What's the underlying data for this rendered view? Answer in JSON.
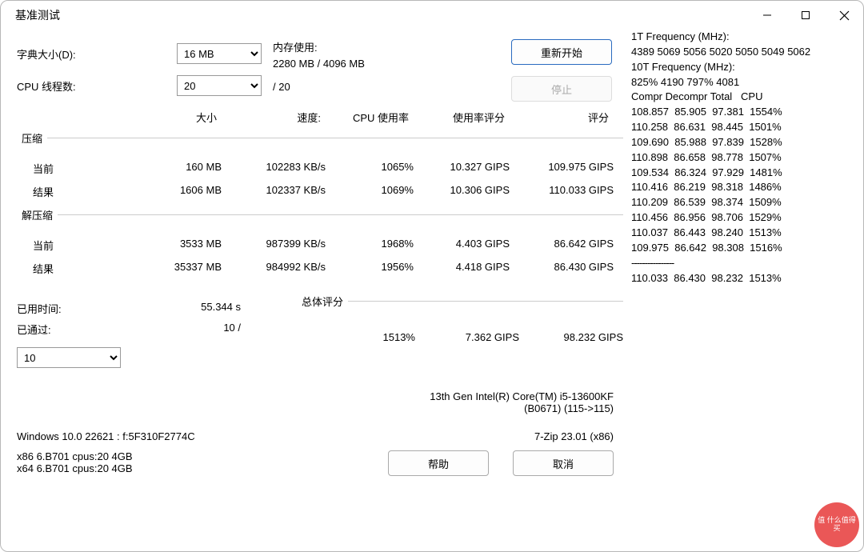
{
  "window": {
    "title": "基准测试"
  },
  "form": {
    "dict_label": "字典大小(D):",
    "dict_value": "16 MB",
    "threads_label": "CPU 线程数:",
    "threads_value": "20",
    "threads_max": "/ 20",
    "mem_label": "内存使用:",
    "mem_value": "2280 MB / 4096 MB",
    "restart": "重新开始",
    "stop": "停止"
  },
  "headers": {
    "size": "大小",
    "speed": "速度:",
    "cpu": "CPU 使用率",
    "rating": "使用率评分",
    "score": "评分"
  },
  "comp": {
    "title": "压缩",
    "cur_label": "当前",
    "res_label": "结果",
    "cur": {
      "size": "160 MB",
      "speed": "102283 KB/s",
      "cpu": "1065%",
      "rating": "10.327 GIPS",
      "score": "109.975 GIPS"
    },
    "res": {
      "size": "1606 MB",
      "speed": "102337 KB/s",
      "cpu": "1069%",
      "rating": "10.306 GIPS",
      "score": "110.033 GIPS"
    }
  },
  "decomp": {
    "title": "解压缩",
    "cur_label": "当前",
    "res_label": "结果",
    "cur": {
      "size": "3533 MB",
      "speed": "987399 KB/s",
      "cpu": "1968%",
      "rating": "4.403 GIPS",
      "score": "86.642 GIPS"
    },
    "res": {
      "size": "35337 MB",
      "speed": "984992 KB/s",
      "cpu": "1956%",
      "rating": "4.418 GIPS",
      "score": "86.430 GIPS"
    }
  },
  "totals": {
    "elapsed_label": "已用时间:",
    "elapsed_value": "55.344 s",
    "passes_label": "已通过:",
    "passes_value": "10 /",
    "pass_select": "10",
    "group_title": "总体评分",
    "row": {
      "cpu": "1513%",
      "rating": "7.362 GIPS",
      "score": "98.232 GIPS"
    }
  },
  "cpu": {
    "line1": "13th Gen Intel(R) Core(TM) i5-13600KF",
    "line2": "(B0671) (115->115)"
  },
  "sys": {
    "os": "Windows 10.0 22621 :  f:5F310F2774C",
    "zip": "7-Zip 23.01 (x86)",
    "def1": "x86 6.B701 cpus:20 4GB",
    "def2": "x64 6.B701 cpus:20 4GB"
  },
  "buttons": {
    "help": "帮助",
    "cancel": "取消"
  },
  "right": {
    "l1": "1T Frequency (MHz):",
    "l2": " 4389 5069 5056 5020 5050 5049 5062",
    "l3": "10T Frequency (MHz):",
    "l4": " 825% 4190 797% 4081",
    "hdr": "Compr Decompr Total   CPU",
    "rows": [
      "108.857  85.905  97.381  1554%",
      "110.258  86.631  98.445  1501%",
      "109.690  85.988  97.839  1528%",
      "110.898  86.658  98.778  1507%",
      "109.534  86.324  97.929  1481%",
      "110.416  86.219  98.318  1486%",
      "110.209  86.539  98.374  1509%",
      "110.456  86.956  98.706  1529%",
      "110.037  86.443  98.240  1513%",
      "109.975  86.642  98.308  1516%"
    ],
    "sep": "----------------",
    "final": "110.033  86.430  98.232  1513%"
  },
  "watermark": "值 什么值得买"
}
